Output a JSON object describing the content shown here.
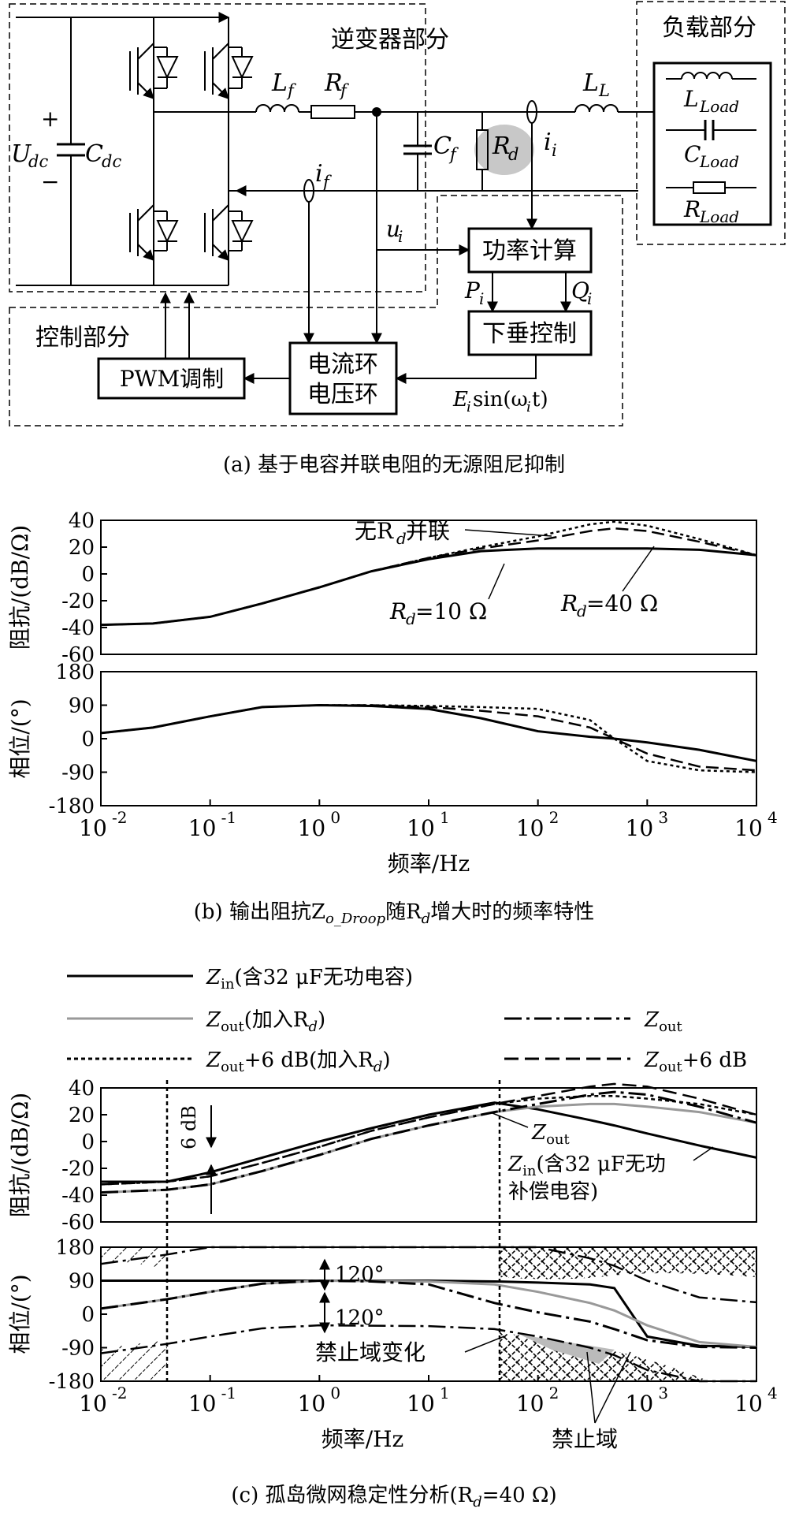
{
  "part_a": {
    "inverter_label": "逆变器部分",
    "load_label": "负载部分",
    "control_label": "控制部分",
    "udc_plus": "+",
    "udc_minus": "−",
    "udc": "U",
    "udc_sub": "dc",
    "cdc": "C",
    "cdc_sub": "dc",
    "lf": "L",
    "lf_sub": "f",
    "rf": "R",
    "rf_sub": "f",
    "cf": "C",
    "cf_sub": "f",
    "rd": "R",
    "rd_sub": "d",
    "ii": "i",
    "ii_sub": "i",
    "if": "i",
    "if_sub": "f",
    "ll": "L",
    "ll_sub": "L",
    "lload": "L",
    "lload_sub": "Load",
    "cload": "C",
    "cload_sub": "Load",
    "rload": "R",
    "rload_sub": "Load",
    "ui": "u",
    "ui_sub": "i",
    "power_calc": "功率计算",
    "pi": "P",
    "pi_sub": "i",
    "qi": "Q",
    "qi_sub": "i",
    "droop": "下垂控制",
    "pwm": "PWM调制",
    "loop1": "电流环",
    "loop2": "电压环",
    "e_sin": "E",
    "e_sin_sub": "i",
    "e_sin_rest": "sin(ω",
    "e_sin_w_sub": "i",
    "e_sin_end": "t)",
    "caption": "(a) 基于电容并联电阻的无源阻尼抑制"
  },
  "part_b": {
    "caption": "(b) 输出阻抗Z",
    "caption_sub": "o_Droop",
    "caption_mid": "随R",
    "caption_sub2": "d",
    "caption_end": "增大时的频率特性",
    "mag_ylabel": "阻抗/(dB/Ω)",
    "phase_ylabel": "相位/(°)",
    "xlabel": "频率/Hz",
    "annot_no_rd": "无R",
    "annot_no_rd_sub": "d",
    "annot_no_rd_end": "并联",
    "annot_rd10": "R",
    "annot_rd10_sub": "d",
    "annot_rd10_end": "=10 Ω",
    "annot_rd40": "R",
    "annot_rd40_sub": "d",
    "annot_rd40_end": "=40 Ω"
  },
  "part_c": {
    "legend_zin": "Z",
    "legend_zin_sub": "in",
    "legend_zin_end": "(含32 μF无功电容)",
    "legend_zout_rd": "Z",
    "legend_zout_rd_sub": "out",
    "legend_zout_rd_end": "(加入R",
    "legend_zout_rd_sub2": "d",
    "legend_zout_rd_close": ")",
    "legend_zout": "Z",
    "legend_zout_sub": "out",
    "legend_zout6_rd": "Z",
    "legend_zout6_rd_sub": "out",
    "legend_zout6_rd_end": "+6 dB(加入R",
    "legend_zout6_rd_sub2": "d",
    "legend_zout6_rd_close": ")",
    "legend_zout6": "Z",
    "legend_zout6_sub": "out",
    "legend_zout6_end": "+6 dB",
    "mag_ylabel": "阻抗/(dB/Ω)",
    "phase_ylabel": "相位/(°)",
    "xlabel": "频率/Hz",
    "annot_6db": "6 dB",
    "annot_zout": "Z",
    "annot_zout_sub": "out",
    "annot_zin": "Z",
    "annot_zin_sub": "in",
    "annot_zin_end": "(含32 μF无功",
    "annot_zin_line2": "补偿电容)",
    "annot_120a": "120°",
    "annot_120b": "120°",
    "annot_forbid_change": "禁止域变化",
    "annot_forbid": "禁止域",
    "caption": "(c) 孤岛微网稳定性分析(R",
    "caption_sub": "d",
    "caption_end": "=40 Ω)"
  },
  "chart_data": [
    {
      "type": "line",
      "title": "",
      "xlabel": "频率/Hz",
      "ylabel": "阻抗/(dB/Ω)",
      "xscale": "log",
      "xlim": [
        0.01,
        10000
      ],
      "ylim": [
        -60,
        40
      ],
      "x_ticks": [
        "10^-2",
        "10^-1",
        "10^0",
        "10^1",
        "10^2",
        "10^3",
        "10^4"
      ],
      "y_ticks": [
        40,
        20,
        0,
        -20,
        -40,
        -60
      ],
      "x": [
        0.01,
        0.03,
        0.1,
        0.3,
        1,
        3,
        10,
        30,
        100,
        300,
        500,
        1000,
        3000,
        10000
      ],
      "series": [
        {
          "name": "无Rd并联",
          "values": [
            -38,
            -37,
            -32,
            -22,
            -10,
            2,
            12,
            20,
            28,
            37,
            39,
            36,
            26,
            14
          ]
        },
        {
          "name": "Rd=40 Ω",
          "values": [
            -38,
            -37,
            -32,
            -22,
            -10,
            2,
            12,
            19,
            25,
            32,
            34,
            32,
            24,
            14
          ]
        },
        {
          "name": "Rd=10 Ω",
          "values": [
            -38,
            -37,
            -32,
            -22,
            -10,
            2,
            11,
            17,
            19,
            19,
            19,
            19,
            18,
            14
          ]
        }
      ]
    },
    {
      "type": "line",
      "title": "",
      "xlabel": "频率/Hz",
      "ylabel": "相位/(°)",
      "xscale": "log",
      "xlim": [
        0.01,
        10000
      ],
      "ylim": [
        -180,
        180
      ],
      "x_ticks": [
        "10^-2",
        "10^-1",
        "10^0",
        "10^1",
        "10^2",
        "10^3",
        "10^4"
      ],
      "y_ticks": [
        180,
        90,
        0,
        -90,
        -180
      ],
      "x": [
        0.01,
        0.03,
        0.1,
        0.3,
        1,
        3,
        10,
        30,
        100,
        300,
        500,
        1000,
        3000,
        10000
      ],
      "series": [
        {
          "name": "无Rd并联",
          "values": [
            15,
            30,
            60,
            85,
            90,
            90,
            88,
            85,
            80,
            50,
            0,
            -60,
            -85,
            -90
          ]
        },
        {
          "name": "Rd=40 Ω",
          "values": [
            15,
            30,
            60,
            85,
            90,
            90,
            85,
            75,
            60,
            30,
            0,
            -40,
            -75,
            -85
          ]
        },
        {
          "name": "Rd=10 Ω",
          "values": [
            15,
            30,
            60,
            85,
            90,
            88,
            80,
            55,
            20,
            5,
            0,
            -10,
            -30,
            -60
          ]
        }
      ]
    },
    {
      "type": "line",
      "title": "",
      "xlabel": "频率/Hz",
      "ylabel": "阻抗/(dB/Ω)",
      "xscale": "log",
      "xlim": [
        0.01,
        10000
      ],
      "ylim": [
        -60,
        40
      ],
      "x_ticks": [
        "10^-2",
        "10^-1",
        "10^0",
        "10^1",
        "10^2",
        "10^3",
        "10^4"
      ],
      "y_ticks": [
        40,
        20,
        0,
        -20,
        -40,
        -60
      ],
      "x": [
        0.01,
        0.04,
        0.1,
        0.3,
        1,
        3,
        10,
        40,
        100,
        300,
        500,
        1000,
        3000,
        10000
      ],
      "series": [
        {
          "name": "Zin(含32 μF无功电容)",
          "values": [
            -30,
            -30,
            -23,
            -12,
            0,
            10,
            20,
            29,
            24,
            16,
            12,
            6,
            -3,
            -12
          ]
        },
        {
          "name": "Zout(加入Rd)",
          "values": [
            -38,
            -36,
            -32,
            -22,
            -10,
            2,
            12,
            22,
            26,
            28,
            28,
            26,
            22,
            14
          ]
        },
        {
          "name": "Zout",
          "values": [
            -38,
            -36,
            -32,
            -22,
            -10,
            2,
            12,
            22,
            28,
            35,
            37,
            35,
            26,
            14
          ]
        },
        {
          "name": "Zout+6 dB(加入Rd)",
          "values": [
            -32,
            -30,
            -26,
            -16,
            -4,
            8,
            18,
            28,
            32,
            34,
            34,
            32,
            28,
            20
          ]
        },
        {
          "name": "Zout+6 dB",
          "values": [
            -32,
            -30,
            -26,
            -16,
            -4,
            8,
            18,
            28,
            34,
            41,
            43,
            41,
            32,
            20
          ]
        }
      ]
    },
    {
      "type": "line",
      "title": "",
      "xlabel": "频率/Hz",
      "ylabel": "相位/(°)",
      "xscale": "log",
      "xlim": [
        0.01,
        10000
      ],
      "ylim": [
        -180,
        180
      ],
      "x_ticks": [
        "10^-2",
        "10^-1",
        "10^0",
        "10^1",
        "10^2",
        "10^3",
        "10^4"
      ],
      "y_ticks": [
        180,
        90,
        0,
        -90,
        -180
      ],
      "x": [
        0.01,
        0.04,
        0.1,
        0.3,
        1,
        3,
        10,
        40,
        100,
        300,
        500,
        1000,
        3000,
        10000
      ],
      "series": [
        {
          "name": "Zin(含32 μF无功电容)",
          "values": [
            90,
            90,
            90,
            90,
            90,
            90,
            90,
            88,
            85,
            80,
            70,
            -60,
            -85,
            -88
          ]
        },
        {
          "name": "Zout(加入Rd)",
          "values": [
            15,
            40,
            60,
            82,
            90,
            89,
            88,
            80,
            60,
            30,
            10,
            -30,
            -75,
            -88
          ]
        },
        {
          "name": "Zout",
          "values": [
            15,
            40,
            60,
            82,
            90,
            88,
            80,
            30,
            5,
            -20,
            -40,
            -70,
            -88,
            -90
          ]
        }
      ]
    }
  ]
}
